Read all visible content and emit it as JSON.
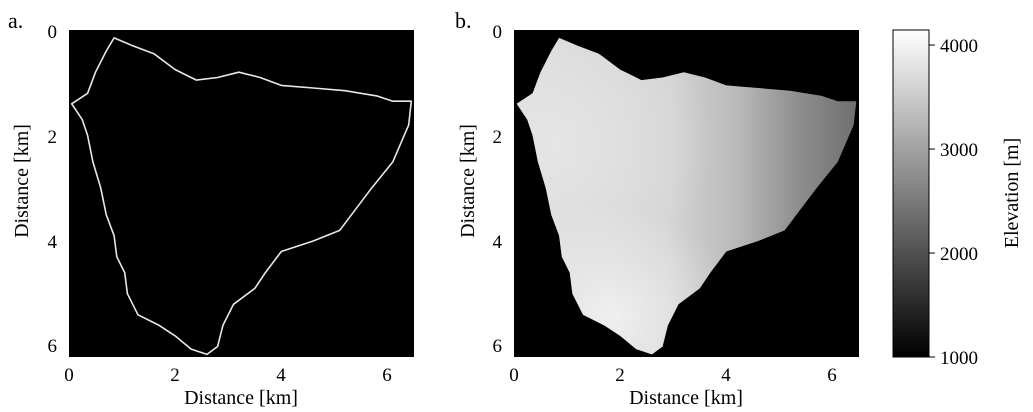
{
  "figure": {
    "panels": [
      {
        "label": "a.",
        "content": "catchment-boundary",
        "xlabel": "Distance [km]",
        "ylabel": "Distance [km]",
        "xticks": [
          "0",
          "2",
          "4",
          "6"
        ],
        "yticks": [
          "0",
          "2",
          "4",
          "6"
        ],
        "background_color": "#000000",
        "line_color": "#e8e8e8"
      },
      {
        "label": "b.",
        "content": "elevation-map",
        "xlabel": "Distance [km]",
        "ylabel": "Distance [km]",
        "xticks": [
          "0",
          "2",
          "4",
          "6"
        ],
        "yticks": [
          "0",
          "2",
          "4",
          "6"
        ],
        "background_color": "#000000"
      }
    ],
    "colorbar": {
      "label": "Elevation [m]",
      "ticks": [
        "1000",
        "2000",
        "3000",
        "4000"
      ],
      "min": 1000,
      "max": 4150,
      "colormap": "gray"
    }
  },
  "chart_data": [
    {
      "type": "line",
      "x_range": [
        0,
        6.5
      ],
      "y_range": [
        0,
        6.2
      ],
      "y_axis_inverted": true,
      "outline_km": [
        [
          0.85,
          0.15
        ],
        [
          1.2,
          0.3
        ],
        [
          1.6,
          0.45
        ],
        [
          2.0,
          0.75
        ],
        [
          2.4,
          0.95
        ],
        [
          2.8,
          0.9
        ],
        [
          3.2,
          0.8
        ],
        [
          3.6,
          0.9
        ],
        [
          4.0,
          1.05
        ],
        [
          4.6,
          1.1
        ],
        [
          5.2,
          1.15
        ],
        [
          5.8,
          1.25
        ],
        [
          6.1,
          1.35
        ],
        [
          6.45,
          1.35
        ],
        [
          6.4,
          1.8
        ],
        [
          6.1,
          2.5
        ],
        [
          5.7,
          3.0
        ],
        [
          5.4,
          3.4
        ],
        [
          5.1,
          3.8
        ],
        [
          4.6,
          4.0
        ],
        [
          4.0,
          4.2
        ],
        [
          3.7,
          4.6
        ],
        [
          3.5,
          4.9
        ],
        [
          3.1,
          5.2
        ],
        [
          2.9,
          5.6
        ],
        [
          2.8,
          6.0
        ],
        [
          2.6,
          6.15
        ],
        [
          2.3,
          6.05
        ],
        [
          2.0,
          5.8
        ],
        [
          1.7,
          5.6
        ],
        [
          1.3,
          5.4
        ],
        [
          1.1,
          5.0
        ],
        [
          1.05,
          4.6
        ],
        [
          0.9,
          4.3
        ],
        [
          0.85,
          3.9
        ],
        [
          0.7,
          3.5
        ],
        [
          0.6,
          3.0
        ],
        [
          0.45,
          2.5
        ],
        [
          0.35,
          2.0
        ],
        [
          0.25,
          1.7
        ],
        [
          0.05,
          1.4
        ],
        [
          0.35,
          1.2
        ],
        [
          0.5,
          0.8
        ],
        [
          0.7,
          0.4
        ],
        [
          0.85,
          0.15
        ]
      ]
    },
    {
      "type": "heatmap",
      "x_range": [
        0,
        6.5
      ],
      "y_range": [
        0,
        6.2
      ],
      "y_axis_inverted": true,
      "value_range": [
        1000,
        4150
      ],
      "approx_elevation_m": {
        "west_part": 3700,
        "central_part": 3500,
        "east_edge": 2300,
        "south_lobe": 3800
      }
    }
  ]
}
